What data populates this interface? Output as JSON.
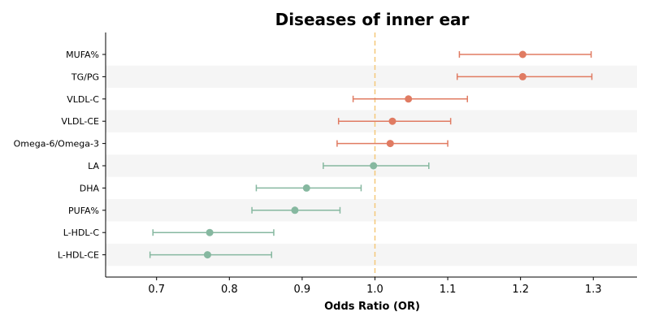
{
  "chart_data": {
    "type": "scatter",
    "title": "Diseases of inner ear",
    "xlabel": "Odds Ratio (OR)",
    "ylabel": "",
    "xlim": [
      0.63,
      1.36
    ],
    "xticks": [
      "0.7",
      "0.8",
      "0.9",
      "1.0",
      "1.1",
      "1.2",
      "1.3"
    ],
    "reference_line": 1.0,
    "colors": {
      "risk": "#e07b62",
      "protective": "#86b8a0",
      "reference": "#f5c87a",
      "band": "#f5f5f5"
    },
    "rows": [
      {
        "label": "MUFA%",
        "or": 1.203,
        "lo": 1.116,
        "hi": 1.297,
        "group": "risk"
      },
      {
        "label": "TG/PG",
        "or": 1.203,
        "lo": 1.113,
        "hi": 1.298,
        "group": "risk"
      },
      {
        "label": "VLDL-C",
        "or": 1.046,
        "lo": 0.97,
        "hi": 1.127,
        "group": "risk"
      },
      {
        "label": "VLDL-CE",
        "or": 1.024,
        "lo": 0.95,
        "hi": 1.104,
        "group": "risk"
      },
      {
        "label": "Omega-6/Omega-3",
        "or": 1.021,
        "lo": 0.948,
        "hi": 1.1,
        "group": "risk"
      },
      {
        "label": "LA",
        "or": 0.998,
        "lo": 0.929,
        "hi": 1.074,
        "group": "protective"
      },
      {
        "label": "DHA",
        "or": 0.906,
        "lo": 0.837,
        "hi": 0.981,
        "group": "protective"
      },
      {
        "label": "PUFA%",
        "or": 0.89,
        "lo": 0.831,
        "hi": 0.952,
        "group": "protective"
      },
      {
        "label": "L-HDL-C",
        "or": 0.773,
        "lo": 0.695,
        "hi": 0.861,
        "group": "protective"
      },
      {
        "label": "L-HDL-CE",
        "or": 0.77,
        "lo": 0.691,
        "hi": 0.858,
        "group": "protective"
      }
    ]
  }
}
